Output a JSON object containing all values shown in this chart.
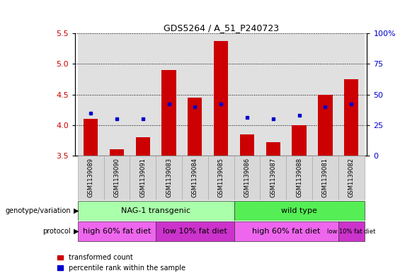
{
  "title": "GDS5264 / A_51_P240723",
  "samples": [
    "GSM1139089",
    "GSM1139090",
    "GSM1139091",
    "GSM1139083",
    "GSM1139084",
    "GSM1139085",
    "GSM1139086",
    "GSM1139087",
    "GSM1139088",
    "GSM1139081",
    "GSM1139082"
  ],
  "transformed_counts": [
    4.1,
    3.6,
    3.8,
    4.9,
    4.45,
    5.38,
    3.85,
    3.72,
    4.0,
    4.5,
    4.75
  ],
  "percentile_ranks": [
    35,
    30,
    30,
    42,
    40,
    42,
    31,
    30,
    33,
    40,
    42
  ],
  "ylim_left": [
    3.5,
    5.5
  ],
  "ylim_right": [
    0,
    100
  ],
  "yticks_left": [
    3.5,
    4.0,
    4.5,
    5.0,
    5.5
  ],
  "yticks_right": [
    0,
    25,
    50,
    75,
    100
  ],
  "bar_color": "#cc0000",
  "dot_color": "#0000cc",
  "bar_bottom": 3.5,
  "col_bg_colors": [
    "#d9d9d9",
    "#d9d9d9",
    "#d9d9d9",
    "#d9d9d9",
    "#d9d9d9",
    "#d9d9d9",
    "#d9d9d9",
    "#d9d9d9",
    "#d9d9d9",
    "#d9d9d9",
    "#d9d9d9"
  ],
  "genotype_groups": [
    {
      "label": "NAG-1 transgenic",
      "start": 0,
      "end": 5,
      "color": "#aaffaa"
    },
    {
      "label": "wild type",
      "start": 6,
      "end": 10,
      "color": "#55ee55"
    }
  ],
  "protocol_groups": [
    {
      "label": "high 60% fat diet",
      "start": 0,
      "end": 2,
      "color": "#ee66ee"
    },
    {
      "label": "low 10% fat diet",
      "start": 3,
      "end": 5,
      "color": "#cc33cc"
    },
    {
      "label": "high 60% fat diet",
      "start": 6,
      "end": 9,
      "color": "#ee66ee"
    },
    {
      "label": "low 10% fat diet",
      "start": 10,
      "end": 10,
      "color": "#cc33cc"
    }
  ],
  "legend_items": [
    {
      "label": "transformed count",
      "color": "#cc0000"
    },
    {
      "label": "percentile rank within the sample",
      "color": "#0000cc"
    }
  ],
  "axis_label_color_left": "#cc0000",
  "axis_label_color_right": "#0000cc",
  "background_color": "#ffffff"
}
